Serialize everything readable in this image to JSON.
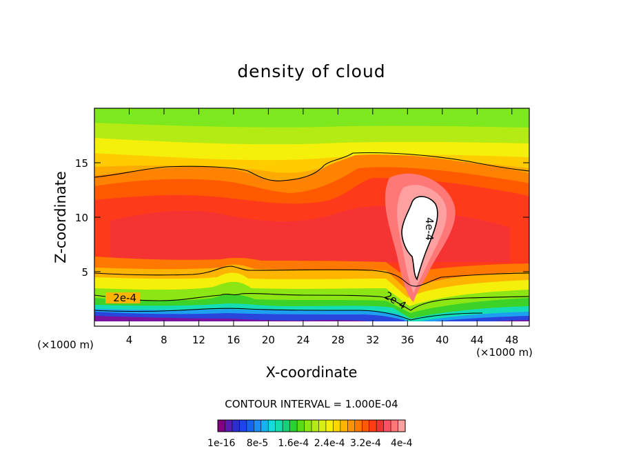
{
  "chart_data": {
    "type": "heatmap",
    "title": "density of cloud",
    "xlabel": "X-coordinate",
    "ylabel": "Z-coordinate",
    "x_unit": "(×1000 m)",
    "y_unit": "(×1000 m)",
    "xlim": [
      0,
      50
    ],
    "ylim": [
      0,
      20
    ],
    "x_ticks": [
      4,
      8,
      12,
      16,
      20,
      24,
      28,
      32,
      36,
      40,
      44,
      48
    ],
    "y_ticks": [
      5,
      10,
      15
    ],
    "contour_interval_text": "CONTOUR INTERVAL = 1.000E-04",
    "contour_labels": [
      {
        "text": "2e-4",
        "x": 3.5,
        "z": 2.6
      },
      {
        "text": "2e-4",
        "x": 34.5,
        "z": 2.6
      },
      {
        "text": "4e-4",
        "x": 38.9,
        "z": 9.1
      }
    ],
    "colorbar": {
      "tick_labels": [
        "1e-16",
        "8e-5",
        "1.6e-4",
        "2.4e-4",
        "3.2e-4",
        "4e-4"
      ],
      "colors": [
        "#800080",
        "#5a1ab4",
        "#2d2dd2",
        "#1e46e6",
        "#1464f0",
        "#1e8cf5",
        "#14b4f0",
        "#14dcdc",
        "#14dcaa",
        "#14d278",
        "#28d232",
        "#5adc14",
        "#8ce614",
        "#b4eb14",
        "#d7f014",
        "#f5f00a",
        "#ffd700",
        "#ffb400",
        "#ff9600",
        "#ff7800",
        "#ff5a00",
        "#ff3c14",
        "#f03232",
        "#ff5064",
        "#ff7878",
        "#ffa0a0"
      ],
      "range": [
        1e-16,
        0.0004
      ]
    }
  }
}
